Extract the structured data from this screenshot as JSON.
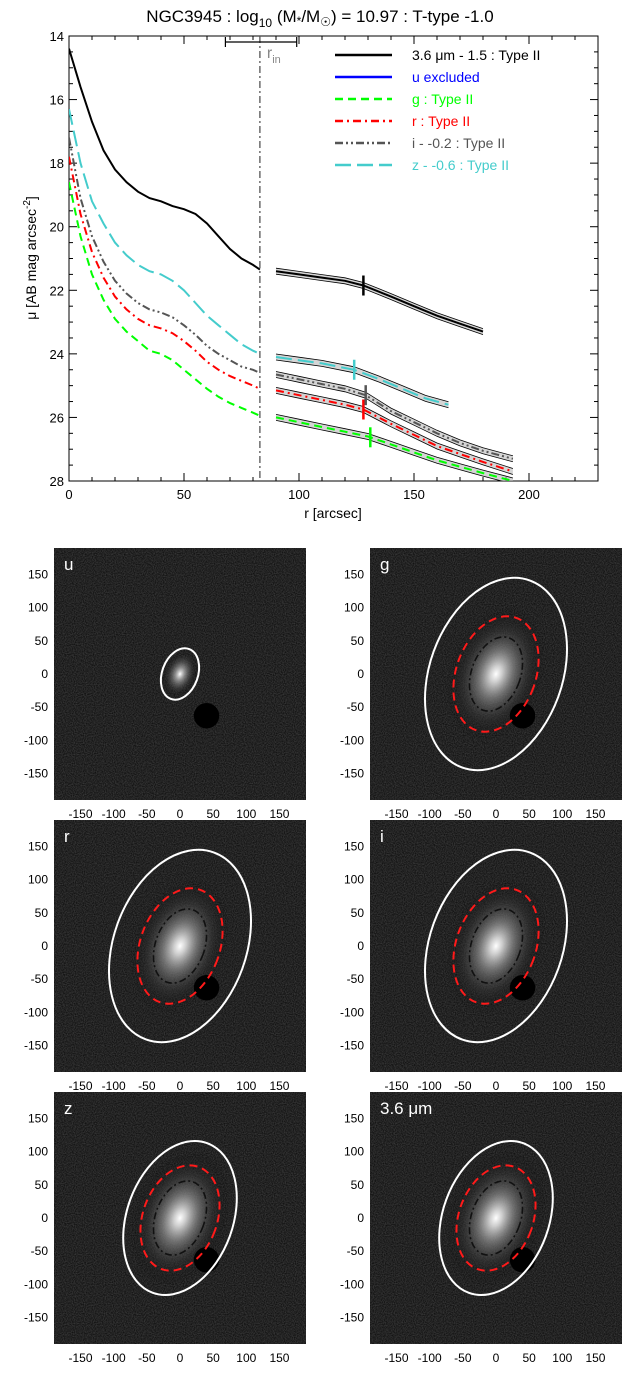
{
  "chart_data": [
    {
      "type": "line",
      "title": "NGC3945 : log10 (M*/M☉) = 10.97 : T-type -1.0",
      "title_parts": {
        "prefix": "NGC3945 : log",
        "sub": "10",
        "mid": " (M",
        "star": "*",
        "sep": "/M",
        "sun": "☉",
        "suffix": ") = 10.97 : T-type -1.0"
      },
      "xlabel": "r [arcsec]",
      "ylabel_parts": {
        "main": "μ [AB mag arcsec",
        "sup": "-2",
        "end": "]"
      },
      "xlim": [
        0,
        230
      ],
      "ylim": [
        28,
        14
      ],
      "x_ticks": [
        0,
        50,
        100,
        150,
        200
      ],
      "y_ticks": [
        14,
        16,
        18,
        20,
        22,
        24,
        26,
        28
      ],
      "r_in": {
        "label_main": "r",
        "label_sub": "in",
        "value": 83,
        "range": [
          68,
          99
        ]
      },
      "legend_position": "top-right",
      "series": [
        {
          "name": "3.6 μm - 1.5 : Type II",
          "color": "#000000",
          "dash": "solid",
          "x": [
            0,
            5,
            10,
            15,
            20,
            25,
            30,
            35,
            40,
            45,
            50,
            55,
            60,
            65,
            70,
            75,
            80,
            83,
            90,
            100,
            110,
            120,
            128,
            140,
            150,
            160,
            170,
            180
          ],
          "y": [
            14.4,
            15.6,
            16.7,
            17.6,
            18.2,
            18.6,
            18.9,
            19.1,
            19.2,
            19.35,
            19.45,
            19.6,
            19.9,
            20.3,
            20.7,
            21.0,
            21.2,
            21.35,
            21.4,
            21.5,
            21.6,
            21.7,
            21.85,
            22.2,
            22.5,
            22.8,
            23.05,
            23.3
          ],
          "break": 128
        },
        {
          "name": "u excluded",
          "color": "#0000ff",
          "dash": "solid",
          "x": [],
          "y": []
        },
        {
          "name": "g : Type II",
          "color": "#00ff00",
          "dash": "dash",
          "x": [
            0,
            5,
            10,
            15,
            20,
            25,
            30,
            35,
            40,
            45,
            50,
            55,
            60,
            65,
            70,
            75,
            80,
            83,
            90,
            100,
            110,
            120,
            130,
            140,
            150,
            160,
            170,
            180,
            193
          ],
          "y": [
            18.6,
            20.3,
            21.5,
            22.3,
            22.9,
            23.3,
            23.6,
            23.9,
            24.0,
            24.2,
            24.5,
            24.8,
            25.1,
            25.35,
            25.55,
            25.7,
            25.85,
            25.95,
            26.0,
            26.15,
            26.3,
            26.45,
            26.6,
            26.85,
            27.1,
            27.35,
            27.55,
            27.75,
            28.0
          ],
          "break": 131
        },
        {
          "name": "r : Type II",
          "color": "#ff0000",
          "dash": "dashdot",
          "x": [
            0,
            5,
            10,
            15,
            20,
            25,
            30,
            35,
            40,
            45,
            50,
            55,
            60,
            65,
            70,
            75,
            80,
            83,
            90,
            100,
            110,
            120,
            128,
            140,
            150,
            160,
            170,
            180,
            193
          ],
          "y": [
            17.8,
            19.6,
            20.8,
            21.6,
            22.2,
            22.6,
            22.9,
            23.1,
            23.2,
            23.35,
            23.6,
            23.9,
            24.25,
            24.5,
            24.7,
            24.85,
            25.0,
            25.1,
            25.15,
            25.3,
            25.45,
            25.6,
            25.75,
            26.2,
            26.55,
            26.9,
            27.15,
            27.4,
            27.7
          ],
          "break": 128
        },
        {
          "name": "i - -0.2 : Type II",
          "color": "#555555",
          "dash": "dashdotdot",
          "x": [
            0,
            5,
            10,
            15,
            20,
            25,
            30,
            35,
            40,
            45,
            50,
            55,
            60,
            65,
            70,
            75,
            80,
            83,
            90,
            100,
            110,
            120,
            129,
            140,
            150,
            160,
            170,
            180,
            193
          ],
          "y": [
            17.2,
            19.1,
            20.3,
            21.1,
            21.7,
            22.1,
            22.4,
            22.6,
            22.7,
            22.85,
            23.1,
            23.4,
            23.75,
            24.0,
            24.2,
            24.4,
            24.5,
            24.6,
            24.65,
            24.8,
            24.95,
            25.1,
            25.3,
            25.8,
            26.15,
            26.5,
            26.8,
            27.05,
            27.3
          ],
          "break": 129
        },
        {
          "name": "z - -0.6 : Type II",
          "color": "#44cccc",
          "dash": "longdash",
          "x": [
            0,
            5,
            10,
            15,
            20,
            25,
            30,
            35,
            40,
            45,
            50,
            55,
            60,
            65,
            70,
            75,
            80,
            83,
            90,
            100,
            110,
            124,
            135,
            145,
            155,
            165
          ],
          "y": [
            16.3,
            18.0,
            19.2,
            19.9,
            20.5,
            20.9,
            21.2,
            21.4,
            21.5,
            21.7,
            22.0,
            22.4,
            22.8,
            23.1,
            23.4,
            23.7,
            23.9,
            24.0,
            24.1,
            24.2,
            24.3,
            24.5,
            24.8,
            25.1,
            25.4,
            25.6
          ],
          "break": 124
        }
      ]
    },
    {
      "type": "image-grid",
      "x_ticks": [
        -150,
        -100,
        -50,
        0,
        50,
        100,
        150
      ],
      "y_ticks": [
        150,
        100,
        50,
        0,
        -50,
        -100,
        -150
      ],
      "x_tick_labels": [
        "-150",
        "-100",
        "-50",
        "0",
        "50",
        "100",
        "150"
      ],
      "y_tick_labels": [
        "150",
        "100",
        "50",
        "0",
        "-50",
        "-100",
        "-150"
      ],
      "extent": [
        -190,
        190
      ],
      "panels": [
        {
          "label": "u",
          "outer": {
            "a": 27,
            "b": 40
          },
          "inner": null,
          "core": null
        },
        {
          "label": "g",
          "outer": {
            "a": 100,
            "b": 150
          },
          "inner": {
            "a": 60,
            "b": 90
          },
          "core": {
            "a": 37,
            "b": 58
          }
        },
        {
          "label": "r",
          "outer": {
            "a": 100,
            "b": 150
          },
          "inner": {
            "a": 60,
            "b": 90
          },
          "core": {
            "a": 37,
            "b": 58
          }
        },
        {
          "label": "i",
          "outer": {
            "a": 100,
            "b": 150
          },
          "inner": {
            "a": 60,
            "b": 90
          },
          "core": {
            "a": 37,
            "b": 58
          }
        },
        {
          "label": "z",
          "outer": {
            "a": 80,
            "b": 120
          },
          "inner": {
            "a": 56,
            "b": 82
          },
          "core": {
            "a": 37,
            "b": 58
          }
        },
        {
          "label": "3.6 μm",
          "outer": {
            "a": 80,
            "b": 120
          },
          "inner": {
            "a": 56,
            "b": 82
          },
          "core": {
            "a": 37,
            "b": 58
          }
        }
      ]
    }
  ]
}
